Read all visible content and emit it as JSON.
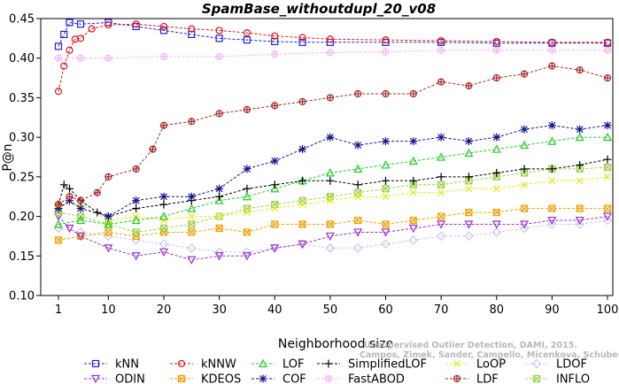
{
  "chart_data": {
    "type": "line",
    "title": "SpamBase_withoutdupl_20_v08",
    "xlabel": "Neighborhood size",
    "ylabel": "P@n",
    "xlim": [
      0,
      100
    ],
    "ylim": [
      0.1,
      0.45
    ],
    "xticks": [
      1,
      10,
      20,
      30,
      40,
      50,
      60,
      70,
      80,
      90,
      100
    ],
    "yticks": [
      "0.10",
      "0.15",
      "0.20",
      "0.25",
      "0.30",
      "0.35",
      "0.40",
      "0.45"
    ],
    "grid": false,
    "legend_position": "bottom",
    "credit": "Campos, Zimek, Sander, Campello, Micenkova, Schubert, Assent, Houle",
    "credit_line1": "Unsupervised Outlier Detection, DAMI, 2015.",
    "series": [
      {
        "name": "kNN",
        "color": "#1f1fdb",
        "marker": "square",
        "line": "dashed",
        "points": [
          [
            1,
            0.415
          ],
          [
            2,
            0.43
          ],
          [
            3,
            0.445
          ],
          [
            5,
            0.443
          ],
          [
            10,
            0.445
          ],
          [
            15,
            0.44
          ],
          [
            20,
            0.435
          ],
          [
            25,
            0.43
          ],
          [
            30,
            0.425
          ],
          [
            35,
            0.423
          ],
          [
            40,
            0.421
          ],
          [
            45,
            0.42
          ],
          [
            50,
            0.42
          ],
          [
            60,
            0.42
          ],
          [
            70,
            0.42
          ],
          [
            80,
            0.419
          ],
          [
            90,
            0.419
          ],
          [
            100,
            0.419
          ]
        ]
      },
      {
        "name": "kNNW",
        "color": "#e01616",
        "marker": "circle",
        "line": "dashed",
        "points": [
          [
            1,
            0.358
          ],
          [
            2,
            0.39
          ],
          [
            3,
            0.41
          ],
          [
            4,
            0.424
          ],
          [
            5,
            0.425
          ],
          [
            7,
            0.437
          ],
          [
            10,
            0.442
          ],
          [
            15,
            0.443
          ],
          [
            20,
            0.44
          ],
          [
            25,
            0.437
          ],
          [
            30,
            0.435
          ],
          [
            35,
            0.432
          ],
          [
            40,
            0.428
          ],
          [
            45,
            0.426
          ],
          [
            50,
            0.424
          ],
          [
            60,
            0.423
          ],
          [
            70,
            0.422
          ],
          [
            80,
            0.421
          ],
          [
            90,
            0.42
          ],
          [
            100,
            0.42
          ]
        ]
      },
      {
        "name": "LOF",
        "color": "#22cc22",
        "marker": "triangle",
        "line": "dashed",
        "points": [
          [
            1,
            0.19
          ],
          [
            5,
            0.195
          ],
          [
            10,
            0.19
          ],
          [
            15,
            0.195
          ],
          [
            20,
            0.2
          ],
          [
            25,
            0.21
          ],
          [
            30,
            0.22
          ],
          [
            35,
            0.225
          ],
          [
            40,
            0.235
          ],
          [
            45,
            0.245
          ],
          [
            50,
            0.255
          ],
          [
            55,
            0.26
          ],
          [
            60,
            0.265
          ],
          [
            65,
            0.27
          ],
          [
            70,
            0.275
          ],
          [
            75,
            0.28
          ],
          [
            80,
            0.285
          ],
          [
            85,
            0.29
          ],
          [
            90,
            0.295
          ],
          [
            95,
            0.3
          ],
          [
            100,
            0.3
          ]
        ]
      },
      {
        "name": "SimplifiedLOF",
        "color": "#000000",
        "marker": "plus",
        "line": "dashed",
        "points": [
          [
            1,
            0.215
          ],
          [
            2,
            0.24
          ],
          [
            3,
            0.235
          ],
          [
            5,
            0.22
          ],
          [
            8,
            0.205
          ],
          [
            10,
            0.2
          ],
          [
            15,
            0.21
          ],
          [
            20,
            0.215
          ],
          [
            25,
            0.22
          ],
          [
            30,
            0.225
          ],
          [
            35,
            0.235
          ],
          [
            40,
            0.24
          ],
          [
            45,
            0.245
          ],
          [
            50,
            0.245
          ],
          [
            55,
            0.24
          ],
          [
            60,
            0.245
          ],
          [
            65,
            0.245
          ],
          [
            70,
            0.25
          ],
          [
            75,
            0.25
          ],
          [
            80,
            0.255
          ],
          [
            85,
            0.26
          ],
          [
            90,
            0.26
          ],
          [
            95,
            0.265
          ],
          [
            100,
            0.272
          ]
        ]
      },
      {
        "name": "LoOP",
        "color": "#e6e61a",
        "marker": "cross",
        "line": "dashed",
        "points": [
          [
            1,
            0.215
          ],
          [
            5,
            0.215
          ],
          [
            10,
            0.195
          ],
          [
            15,
            0.2
          ],
          [
            20,
            0.195
          ],
          [
            25,
            0.2
          ],
          [
            30,
            0.2
          ],
          [
            35,
            0.205
          ],
          [
            40,
            0.21
          ],
          [
            45,
            0.215
          ],
          [
            50,
            0.22
          ],
          [
            55,
            0.225
          ],
          [
            60,
            0.225
          ],
          [
            65,
            0.23
          ],
          [
            70,
            0.23
          ],
          [
            75,
            0.235
          ],
          [
            80,
            0.235
          ],
          [
            85,
            0.24
          ],
          [
            90,
            0.245
          ],
          [
            95,
            0.245
          ],
          [
            100,
            0.25
          ]
        ]
      },
      {
        "name": "LDOF",
        "color": "#c8c8f0",
        "marker": "diamond",
        "line": "dashed",
        "points": [
          [
            1,
            0.185
          ],
          [
            5,
            0.18
          ],
          [
            10,
            0.175
          ],
          [
            15,
            0.17
          ],
          [
            20,
            0.165
          ],
          [
            25,
            0.16
          ],
          [
            30,
            0.155
          ],
          [
            35,
            0.155
          ],
          [
            40,
            0.16
          ],
          [
            45,
            0.165
          ],
          [
            50,
            0.16
          ],
          [
            55,
            0.16
          ],
          [
            60,
            0.165
          ],
          [
            65,
            0.17
          ],
          [
            70,
            0.175
          ],
          [
            75,
            0.175
          ],
          [
            80,
            0.18
          ],
          [
            85,
            0.185
          ],
          [
            90,
            0.19
          ],
          [
            95,
            0.19
          ],
          [
            100,
            0.195
          ]
        ]
      },
      {
        "name": "ODIN",
        "color": "#9b30d0",
        "marker": "triangle-down",
        "line": "dashed",
        "points": [
          [
            1,
            0.2
          ],
          [
            3,
            0.185
          ],
          [
            5,
            0.175
          ],
          [
            10,
            0.16
          ],
          [
            15,
            0.15
          ],
          [
            20,
            0.155
          ],
          [
            25,
            0.145
          ],
          [
            30,
            0.15
          ],
          [
            35,
            0.15
          ],
          [
            40,
            0.16
          ],
          [
            45,
            0.165
          ],
          [
            50,
            0.175
          ],
          [
            55,
            0.18
          ],
          [
            60,
            0.18
          ],
          [
            65,
            0.185
          ],
          [
            70,
            0.19
          ],
          [
            75,
            0.19
          ],
          [
            80,
            0.19
          ],
          [
            85,
            0.19
          ],
          [
            90,
            0.195
          ],
          [
            95,
            0.195
          ],
          [
            100,
            0.2
          ]
        ]
      },
      {
        "name": "KDEOS",
        "color": "#f0a000",
        "marker": "square-x",
        "line": "dashed",
        "points": [
          [
            1,
            0.17
          ],
          [
            5,
            0.175
          ],
          [
            10,
            0.18
          ],
          [
            15,
            0.175
          ],
          [
            20,
            0.18
          ],
          [
            25,
            0.18
          ],
          [
            30,
            0.185
          ],
          [
            35,
            0.18
          ],
          [
            40,
            0.19
          ],
          [
            45,
            0.19
          ],
          [
            50,
            0.19
          ],
          [
            55,
            0.195
          ],
          [
            60,
            0.19
          ],
          [
            65,
            0.195
          ],
          [
            70,
            0.2
          ],
          [
            75,
            0.205
          ],
          [
            80,
            0.205
          ],
          [
            85,
            0.21
          ],
          [
            90,
            0.21
          ],
          [
            95,
            0.21
          ],
          [
            100,
            0.21
          ]
        ]
      },
      {
        "name": "COF",
        "color": "#14148c",
        "marker": "star",
        "line": "dashed",
        "points": [
          [
            1,
            0.21
          ],
          [
            3,
            0.22
          ],
          [
            5,
            0.21
          ],
          [
            10,
            0.2
          ],
          [
            15,
            0.22
          ],
          [
            20,
            0.225
          ],
          [
            25,
            0.225
          ],
          [
            30,
            0.235
          ],
          [
            35,
            0.26
          ],
          [
            40,
            0.27
          ],
          [
            45,
            0.285
          ],
          [
            50,
            0.3
          ],
          [
            55,
            0.29
          ],
          [
            60,
            0.295
          ],
          [
            65,
            0.295
          ],
          [
            70,
            0.3
          ],
          [
            75,
            0.295
          ],
          [
            80,
            0.3
          ],
          [
            85,
            0.31
          ],
          [
            90,
            0.315
          ],
          [
            95,
            0.31
          ],
          [
            100,
            0.315
          ]
        ]
      },
      {
        "name": "FastABOD",
        "color": "#f5b4f5",
        "marker": "circle-plus",
        "line": "dashed",
        "points": [
          [
            1,
            0.4
          ],
          [
            5,
            0.4
          ],
          [
            10,
            0.4
          ],
          [
            20,
            0.402
          ],
          [
            30,
            0.402
          ],
          [
            40,
            0.405
          ],
          [
            50,
            0.407
          ],
          [
            60,
            0.408
          ],
          [
            70,
            0.41
          ],
          [
            80,
            0.41
          ],
          [
            90,
            0.41
          ],
          [
            100,
            0.41
          ]
        ]
      },
      {
        "name": "LDF",
        "color": "#a82828",
        "marker": "circle-plus",
        "line": "dashed",
        "points": [
          [
            1,
            0.215
          ],
          [
            3,
            0.225
          ],
          [
            5,
            0.22
          ],
          [
            8,
            0.23
          ],
          [
            10,
            0.25
          ],
          [
            15,
            0.26
          ],
          [
            18,
            0.285
          ],
          [
            20,
            0.315
          ],
          [
            25,
            0.32
          ],
          [
            30,
            0.33
          ],
          [
            35,
            0.335
          ],
          [
            40,
            0.34
          ],
          [
            45,
            0.345
          ],
          [
            50,
            0.35
          ],
          [
            55,
            0.355
          ],
          [
            60,
            0.355
          ],
          [
            65,
            0.355
          ],
          [
            70,
            0.37
          ],
          [
            75,
            0.365
          ],
          [
            80,
            0.375
          ],
          [
            85,
            0.38
          ],
          [
            90,
            0.39
          ],
          [
            95,
            0.385
          ],
          [
            100,
            0.375
          ]
        ]
      },
      {
        "name": "INFLO",
        "color": "#9ad04a",
        "marker": "square-x",
        "line": "dashed",
        "points": [
          [
            1,
            0.205
          ],
          [
            5,
            0.2
          ],
          [
            10,
            0.19
          ],
          [
            15,
            0.18
          ],
          [
            20,
            0.185
          ],
          [
            25,
            0.19
          ],
          [
            30,
            0.2
          ],
          [
            35,
            0.21
          ],
          [
            40,
            0.215
          ],
          [
            45,
            0.22
          ],
          [
            50,
            0.225
          ],
          [
            55,
            0.23
          ],
          [
            60,
            0.235
          ],
          [
            65,
            0.24
          ],
          [
            70,
            0.24
          ],
          [
            75,
            0.245
          ],
          [
            80,
            0.25
          ],
          [
            85,
            0.255
          ],
          [
            90,
            0.26
          ],
          [
            95,
            0.26
          ],
          [
            100,
            0.262
          ]
        ]
      }
    ],
    "legend_rows": [
      [
        "kNN",
        "kNNW",
        "LOF",
        "SimplifiedLOF",
        "LoOP",
        "LDOF"
      ],
      [
        "ODIN",
        "KDEOS",
        "COF",
        "FastABOD",
        "LDF",
        "INFLO"
      ]
    ]
  }
}
